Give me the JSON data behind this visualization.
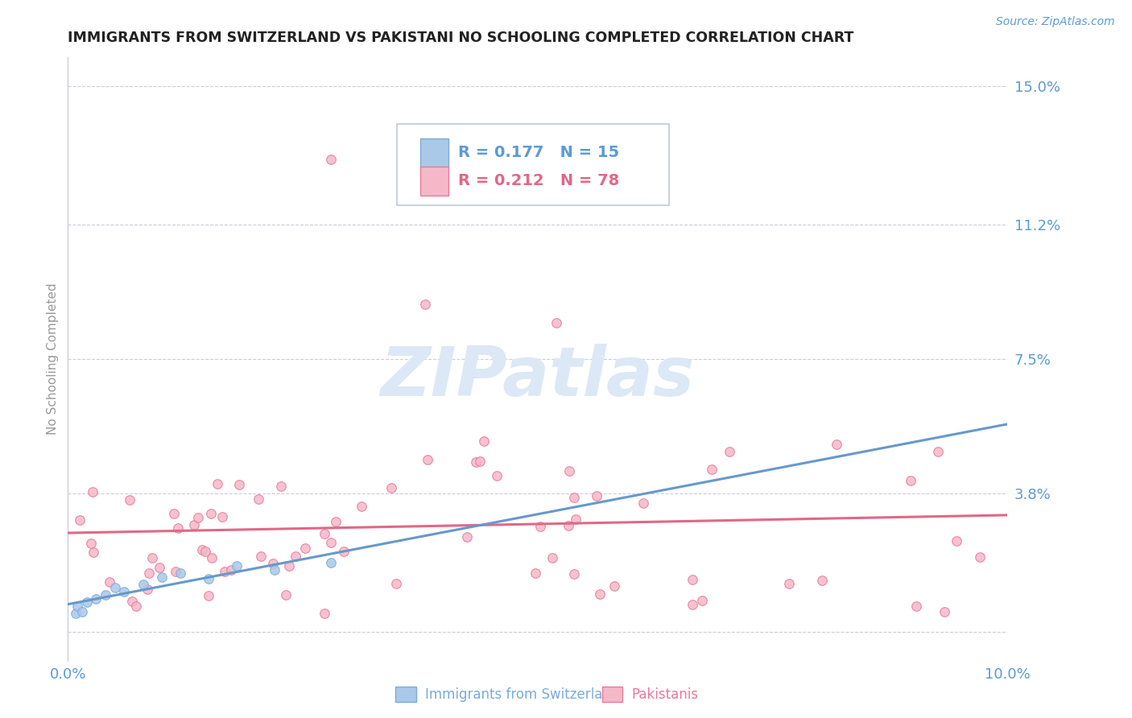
{
  "title": "IMMIGRANTS FROM SWITZERLAND VS PAKISTANI NO SCHOOLING COMPLETED CORRELATION CHART",
  "source": "Source: ZipAtlas.com",
  "ylabel": "No Schooling Completed",
  "xlim": [
    0.0,
    0.1
  ],
  "ylim": [
    -0.008,
    0.158
  ],
  "yticks": [
    0.0,
    0.038,
    0.075,
    0.112,
    0.15
  ],
  "ytick_labels": [
    "",
    "3.8%",
    "7.5%",
    "11.2%",
    "15.0%"
  ],
  "xtick_vals": [
    0.0,
    0.1
  ],
  "xtick_labels": [
    "0.0%",
    "10.0%"
  ],
  "swiss_r": 0.177,
  "swiss_n": 15,
  "pak_r": 0.212,
  "pak_n": 78,
  "swiss_fill_color": "#aac8e8",
  "swiss_edge_color": "#7aabda",
  "pak_fill_color": "#f5b8c8",
  "pak_edge_color": "#e87898",
  "swiss_line_color": "#6699cc",
  "pak_line_color": "#e06888",
  "axis_color": "#5b9bd5",
  "title_color": "#222222",
  "watermark_color": "#dce8f5",
  "grid_color": "#ccccdd",
  "background_color": "#ffffff",
  "legend_text_color": "#5b9bd5",
  "legend_n_color": "#5b9bd5",
  "source_color": "#5b9bd5"
}
